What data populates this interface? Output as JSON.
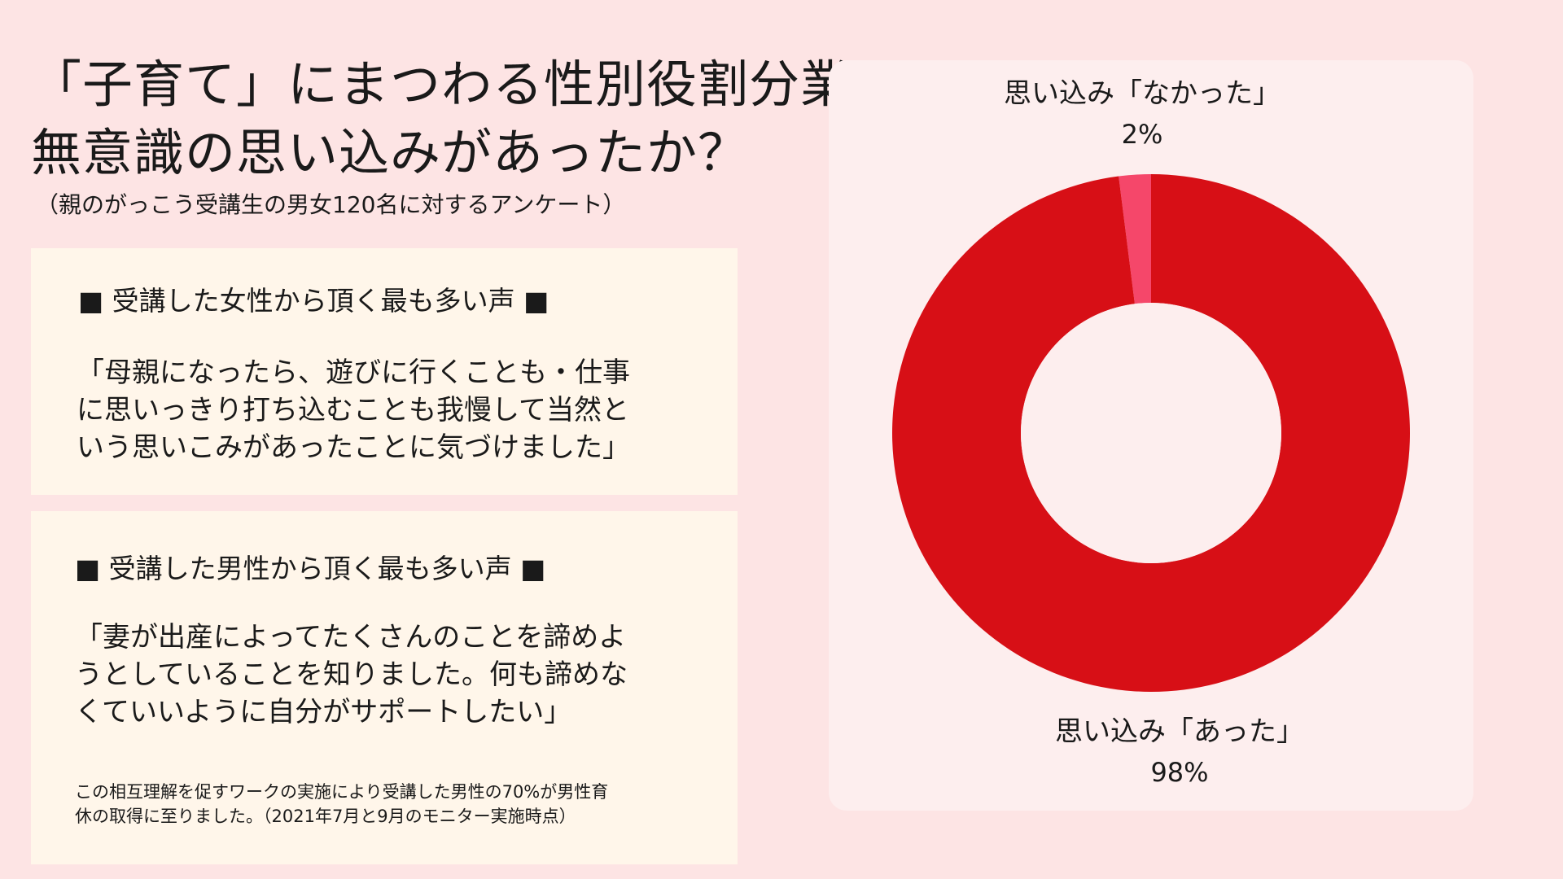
{
  "header": {
    "title_lines": [
      "「子育て」にまつわる性別役割分業の",
      "無意識の思い込みがあったか？"
    ],
    "subtitle": "（親のがっこう受講生の男女120名に対するアンケート）"
  },
  "cards": [
    {
      "heading": "■ 受講した女性から頂く最も多い声 ■",
      "quote_lines": [
        "「母親になったら、遊びに行くことも・仕事",
        "に思いっきり打ち込むことも我慢して当然と",
        "いう思いこみがあったことに気づけました」"
      ]
    },
    {
      "heading": "■ 受講した男性から頂く最も多い声 ■",
      "quote_lines": [
        "「妻が出産によってたくさんのことを諦めよ",
        "うとしていることを知りました。何も諦めな",
        "くていいように自分がサポートしたい」"
      ],
      "note_lines": [
        "この相互理解を促すワークの実施により受講した男性の70%が男性育",
        "休の取得に至りました。（2021年7月と9月のモニター実施時点）"
      ]
    }
  ],
  "chart_data": {
    "type": "pie",
    "subtype": "donut",
    "categories": [
      "思い込み「なかった」",
      "思い込み「あった」"
    ],
    "values": [
      2,
      98
    ],
    "value_labels": [
      "2%",
      "98%"
    ],
    "colors": [
      "#f5476a",
      "#d70f16"
    ],
    "start": "top",
    "direction": "counterclockwise"
  }
}
